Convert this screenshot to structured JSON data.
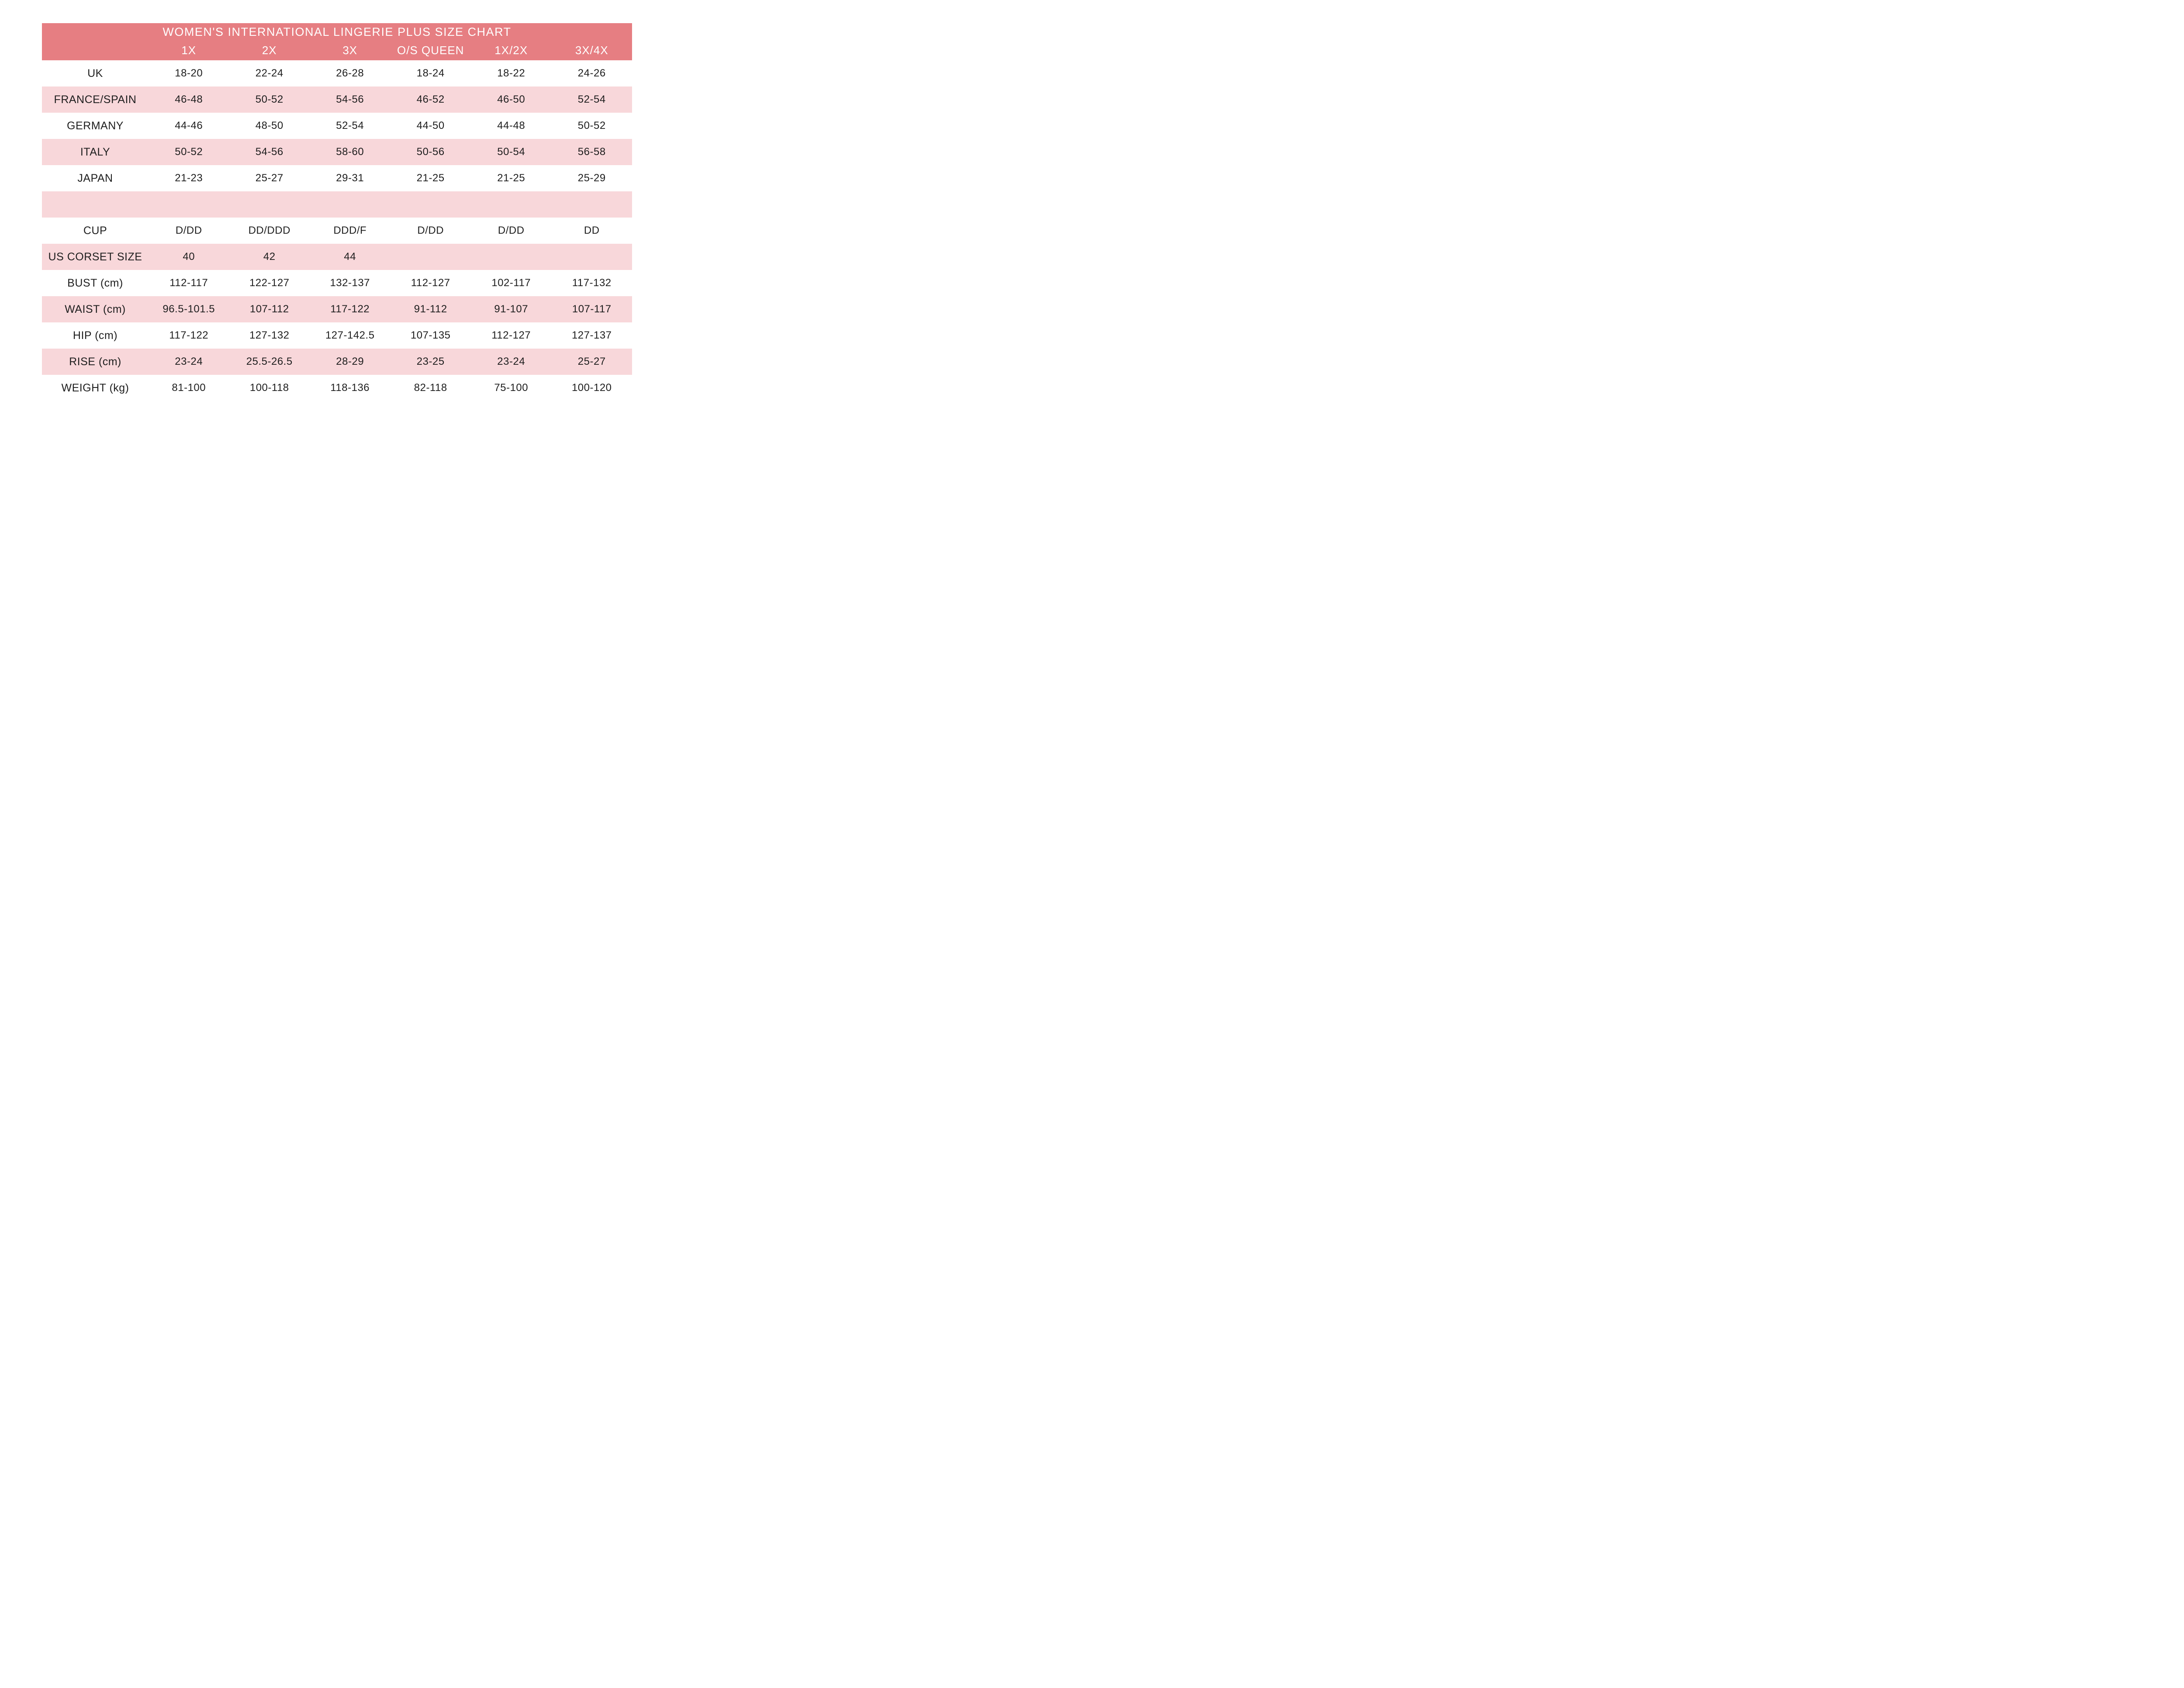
{
  "colors": {
    "header_bg": "#e67e82",
    "shaded_row_bg": "#f8d7da",
    "title_text": "#ffffff",
    "body_text": "#1e1e1e",
    "page_bg": "#ffffff"
  },
  "chart_data": {
    "type": "table",
    "title": "WOMEN'S INTERNATIONAL LINGERIE PLUS SIZE CHART",
    "columns": [
      "1X",
      "2X",
      "3X",
      "O/S QUEEN",
      "1X/2X",
      "3X/4X"
    ],
    "rows": [
      {
        "label": "UK",
        "shaded": false,
        "values": [
          "18-20",
          "22-24",
          "26-28",
          "18-24",
          "18-22",
          "24-26"
        ]
      },
      {
        "label": "FRANCE/SPAIN",
        "shaded": true,
        "values": [
          "46-48",
          "50-52",
          "54-56",
          "46-52",
          "46-50",
          "52-54"
        ]
      },
      {
        "label": "GERMANY",
        "shaded": false,
        "values": [
          "44-46",
          "48-50",
          "52-54",
          "44-50",
          "44-48",
          "50-52"
        ]
      },
      {
        "label": "ITALY",
        "shaded": true,
        "values": [
          "50-52",
          "54-56",
          "58-60",
          "50-56",
          "50-54",
          "56-58"
        ]
      },
      {
        "label": "JAPAN",
        "shaded": false,
        "values": [
          "21-23",
          "25-27",
          "29-31",
          "21-25",
          "21-25",
          "25-29"
        ]
      },
      {
        "label": "",
        "shaded": true,
        "values": [
          "",
          "",
          "",
          "",
          "",
          ""
        ]
      },
      {
        "label": "CUP",
        "shaded": false,
        "values": [
          "D/DD",
          "DD/DDD",
          "DDD/F",
          "D/DD",
          "D/DD",
          "DD"
        ]
      },
      {
        "label": "US CORSET SIZE",
        "shaded": true,
        "values": [
          "40",
          "42",
          "44",
          "",
          "",
          ""
        ]
      },
      {
        "label": "BUST (cm)",
        "shaded": false,
        "values": [
          "112-117",
          "122-127",
          "132-137",
          "112-127",
          "102-117",
          "117-132"
        ]
      },
      {
        "label": "WAIST (cm)",
        "shaded": true,
        "values": [
          "96.5-101.5",
          "107-112",
          "117-122",
          "91-112",
          "91-107",
          "107-117"
        ]
      },
      {
        "label": "HIP (cm)",
        "shaded": false,
        "values": [
          "117-122",
          "127-132",
          "127-142.5",
          "107-135",
          "112-127",
          "127-137"
        ]
      },
      {
        "label": "RISE (cm)",
        "shaded": true,
        "values": [
          "23-24",
          "25.5-26.5",
          "28-29",
          "23-25",
          "23-24",
          "25-27"
        ]
      },
      {
        "label": "WEIGHT (kg)",
        "shaded": false,
        "values": [
          "81-100",
          "100-118",
          "118-136",
          "82-118",
          "75-100",
          "100-120"
        ]
      }
    ]
  }
}
